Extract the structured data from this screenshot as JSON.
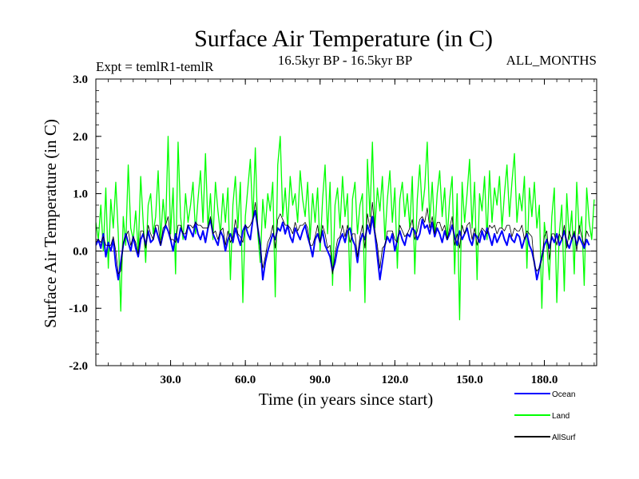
{
  "chart_data": {
    "type": "line",
    "title": "Surface Air Temperature (in C)",
    "experiment_label": "Expt = temlR1-temlR",
    "period_label": "16.5kyr BP - 16.5kyr BP",
    "months_label": "ALL_MONTHS",
    "xlabel": "Time (in years since start)",
    "ylabel": "Surface Air Temperature (in C)",
    "xlim": [
      0,
      201
    ],
    "ylim": [
      -2.0,
      3.0
    ],
    "x_ticks": [
      30,
      60,
      90,
      120,
      150,
      180
    ],
    "x_tick_labels": [
      "30.0",
      "60.0",
      "90.0",
      "120.0",
      "150.0",
      "180.0"
    ],
    "y_ticks": [
      -2,
      -1,
      0,
      1,
      2,
      3
    ],
    "y_tick_labels": [
      "-2.0",
      "-1.0",
      "0.0",
      "1.0",
      "2.0",
      "3.0"
    ],
    "zero_line": 0,
    "series": [
      {
        "name": "Land",
        "color": "#00ff00",
        "x_start": 0,
        "x_step": 1,
        "values": [
          0.5,
          0.2,
          0.8,
          0.0,
          1.1,
          -0.3,
          0.9,
          0.4,
          1.2,
          0.3,
          -1.05,
          0.6,
          0.1,
          1.5,
          0.4,
          0.2,
          0.7,
          0.0,
          1.3,
          0.5,
          -0.2,
          0.8,
          1.0,
          0.3,
          0.6,
          1.4,
          0.2,
          0.9,
          0.4,
          2.0,
          0.3,
          1.1,
          -0.4,
          1.9,
          0.6,
          0.2,
          1.0,
          0.5,
          0.8,
          1.2,
          0.3,
          0.9,
          1.4,
          0.5,
          1.7,
          0.4,
          1.0,
          0.2,
          1.2,
          0.7,
          0.3,
          1.0,
          0.5,
          1.1,
          -0.5,
          0.8,
          1.3,
          0.4,
          1.2,
          -0.9,
          0.6,
          1.1,
          1.6,
          0.5,
          1.8,
          0.3,
          -0.2,
          0.9,
          0.4,
          1.0,
          0.7,
          1.2,
          -0.8,
          1.5,
          2.0,
          0.6,
          1.1,
          0.4,
          1.3,
          0.8,
          1.0,
          0.5,
          1.4,
          0.9,
          0.6,
          1.2,
          0.2,
          1.0,
          0.5,
          1.1,
          0.0,
          0.9,
          1.5,
          0.3,
          1.2,
          -0.6,
          0.8,
          1.1,
          0.4,
          1.3,
          0.6,
          1.0,
          -0.7,
          0.9,
          1.2,
          0.3,
          0.8,
          1.0,
          -0.9,
          1.6,
          0.6,
          1.9,
          0.4,
          1.1,
          0.7,
          1.3,
          0.2,
          0.9,
          1.4,
          0.5,
          1.1,
          -0.3,
          0.9,
          1.2,
          0.6,
          1.0,
          0.4,
          1.3,
          -0.4,
          0.9,
          1.5,
          0.7,
          1.1,
          1.9,
          0.5,
          1.2,
          0.3,
          1.0,
          1.4,
          0.6,
          1.1,
          0.2,
          0.9,
          1.3,
          -0.4,
          1.0,
          -1.2,
          1.2,
          0.5,
          1.0,
          1.6,
          0.4,
          1.2,
          -0.5,
          1.0,
          0.7,
          1.3,
          0.2,
          1.4,
          0.5,
          1.1,
          0.8,
          1.3,
          0.4,
          1.0,
          1.5,
          0.6,
          1.2,
          1.7,
          0.5,
          1.0,
          0.7,
          1.3,
          -0.3,
          1.1,
          0.6,
          1.2,
          0.4,
          0.8,
          -1.0,
          0.5,
          0.1,
          -0.5,
          0.6,
          1.1,
          -0.9,
          0.3,
          0.8,
          -0.7,
          1.0,
          0.2,
          0.7,
          -0.4,
          1.2,
          0.3,
          0.6,
          -0.6,
          1.1,
          0.5,
          0.2,
          0.9
        ]
      },
      {
        "name": "Ocean",
        "color": "#0000ff",
        "x_start": 0,
        "x_step": 1,
        "values": [
          0.1,
          0.2,
          0.05,
          0.3,
          -0.1,
          0.15,
          0.0,
          0.2,
          -0.25,
          -0.5,
          -0.2,
          0.1,
          0.3,
          0.15,
          0.0,
          0.25,
          0.05,
          -0.1,
          0.2,
          0.3,
          0.1,
          0.35,
          0.15,
          0.2,
          0.4,
          0.25,
          0.1,
          0.3,
          0.45,
          0.35,
          0.2,
          0.0,
          0.3,
          0.15,
          0.4,
          0.3,
          0.2,
          0.45,
          0.35,
          0.25,
          0.5,
          0.3,
          0.2,
          0.35,
          0.15,
          0.4,
          0.55,
          0.3,
          0.2,
          0.1,
          0.35,
          0.25,
          0.0,
          0.2,
          0.3,
          0.15,
          0.4,
          0.25,
          0.1,
          0.35,
          0.45,
          0.3,
          0.2,
          0.55,
          0.7,
          0.4,
          0.1,
          -0.5,
          -0.2,
          0.0,
          0.15,
          0.3,
          0.2,
          0.4,
          0.35,
          0.5,
          0.3,
          0.45,
          0.25,
          0.15,
          0.4,
          0.3,
          0.2,
          0.35,
          0.45,
          0.25,
          0.1,
          -0.1,
          0.2,
          0.3,
          0.15,
          0.35,
          0.1,
          0.0,
          -0.1,
          -0.35,
          -0.2,
          0.05,
          0.2,
          0.3,
          0.15,
          0.35,
          0.4,
          0.2,
          0.1,
          -0.2,
          0.15,
          0.3,
          0.2,
          0.45,
          0.3,
          0.6,
          0.3,
          -0.1,
          -0.5,
          -0.2,
          0.1,
          0.25,
          0.15,
          0.3,
          0.0,
          0.2,
          0.35,
          0.2,
          0.1,
          0.3,
          0.25,
          0.4,
          0.35,
          0.2,
          0.3,
          0.55,
          0.4,
          0.45,
          0.3,
          0.5,
          0.25,
          0.4,
          0.3,
          0.15,
          0.35,
          0.2,
          0.3,
          0.45,
          0.25,
          0.1,
          0.35,
          0.2,
          0.3,
          0.4,
          0.2,
          0.1,
          0.3,
          0.25,
          0.15,
          0.35,
          0.2,
          0.4,
          0.25,
          0.1,
          0.3,
          0.15,
          0.25,
          0.35,
          0.2,
          0.1,
          0.3,
          0.2,
          0.15,
          0.3,
          0.25,
          0.05,
          0.2,
          0.3,
          0.1,
          0.0,
          -0.2,
          -0.5,
          -0.3,
          -0.1,
          0.1,
          0.2,
          0.05,
          0.25,
          0.15,
          0.3,
          0.1,
          0.2,
          0.35,
          0.15,
          0.05,
          0.2,
          0.3,
          0.1,
          0.25,
          0.15,
          0.05,
          0.2,
          0.1
        ]
      },
      {
        "name": "AllSurf",
        "color": "#000000",
        "x_start": 0,
        "x_step": 1,
        "values": [
          0.15,
          0.2,
          0.15,
          0.25,
          0.1,
          0.1,
          0.1,
          0.25,
          0.0,
          -0.4,
          -0.35,
          0.15,
          0.25,
          0.35,
          0.1,
          0.25,
          0.15,
          -0.05,
          0.35,
          0.35,
          0.05,
          0.45,
          0.3,
          0.2,
          0.45,
          0.45,
          0.1,
          0.4,
          0.45,
          0.6,
          0.2,
          0.2,
          0.15,
          0.45,
          0.45,
          0.3,
          0.3,
          0.45,
          0.45,
          0.4,
          0.5,
          0.45,
          0.45,
          0.4,
          0.4,
          0.4,
          0.6,
          0.3,
          0.35,
          0.2,
          0.35,
          0.4,
          0.1,
          0.35,
          0.15,
          0.25,
          0.55,
          0.3,
          0.25,
          0.15,
          0.45,
          0.4,
          0.45,
          0.55,
          0.85,
          0.4,
          0.05,
          -0.3,
          -0.1,
          0.15,
          0.25,
          0.45,
          0.05,
          0.55,
          0.65,
          0.55,
          0.45,
          0.45,
          0.4,
          0.3,
          0.5,
          0.35,
          0.45,
          0.45,
          0.5,
          0.4,
          0.1,
          0.1,
          0.25,
          0.45,
          0.15,
          0.45,
          0.3,
          0.05,
          0.1,
          -0.4,
          -0.05,
          0.2,
          0.25,
          0.45,
          0.25,
          0.45,
          0.15,
          0.3,
          0.3,
          -0.1,
          0.25,
          0.45,
          0.05,
          0.65,
          0.4,
          0.85,
          0.35,
          0.1,
          -0.3,
          0.05,
          0.1,
          0.35,
          0.35,
          0.35,
          0.2,
          0.15,
          0.45,
          0.35,
          0.25,
          0.3,
          0.4,
          0.55,
          0.2,
          0.35,
          0.55,
          0.6,
          0.5,
          0.75,
          0.4,
          0.6,
          0.3,
          0.5,
          0.5,
          0.35,
          0.45,
          0.2,
          0.4,
          0.6,
          0.1,
          0.3,
          0.05,
          0.45,
          0.3,
          0.45,
          0.5,
          0.2,
          0.4,
          0.1,
          0.3,
          0.4,
          0.35,
          0.3,
          0.45,
          0.4,
          0.45,
          0.3,
          0.4,
          0.4,
          0.35,
          0.45,
          0.45,
          0.25,
          0.4,
          0.35,
          0.35,
          0.45,
          0.2,
          0.35,
          0.3,
          0.25,
          -0.25,
          -0.35,
          -0.3,
          -0.15,
          0.25,
          0.35,
          -0.15,
          0.3,
          0.3,
          0.1,
          0.3,
          0.2,
          0.45,
          0.05,
          0.35,
          0.2,
          0.35,
          0.0,
          0.45,
          0.25,
          0.1,
          0.35,
          0.25
        ]
      }
    ],
    "legend": {
      "placement": "bottom-right",
      "entries": [
        {
          "name": "Ocean",
          "color": "#0000ff"
        },
        {
          "name": "Land",
          "color": "#00ff00"
        },
        {
          "name": "AllSurf",
          "color": "#000000"
        }
      ]
    }
  }
}
